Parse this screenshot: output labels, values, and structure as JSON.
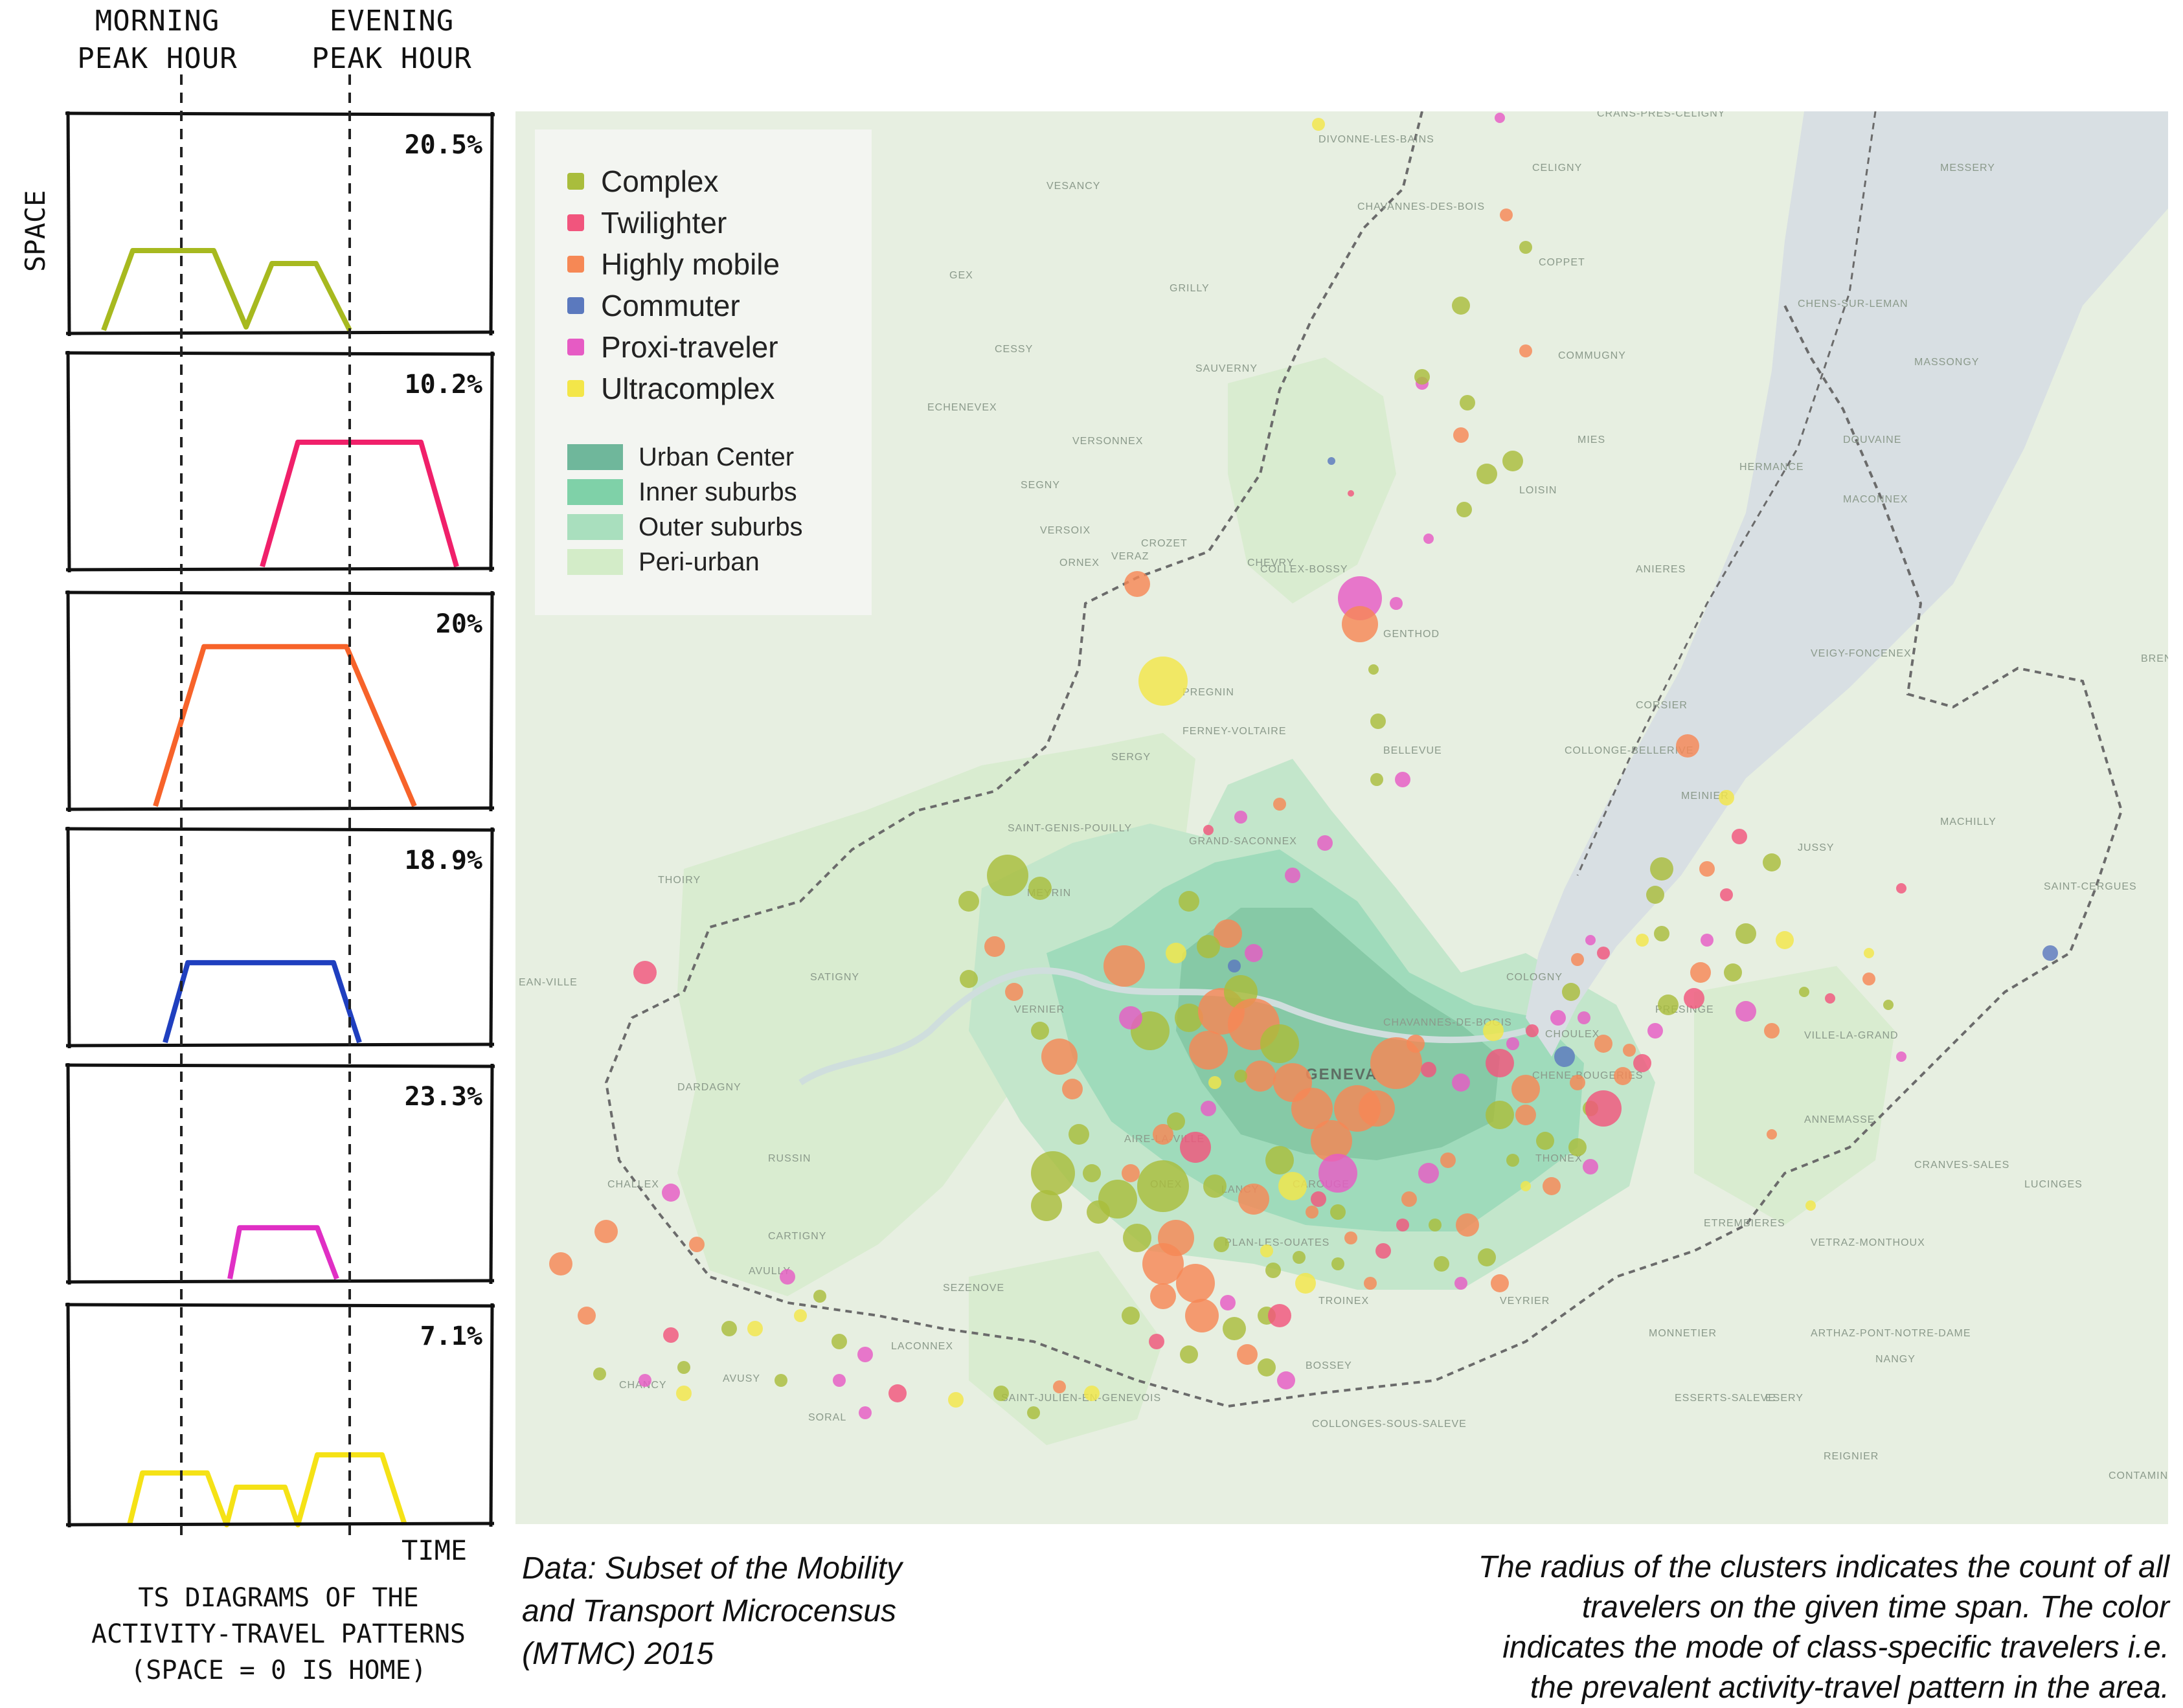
{
  "ts_panel": {
    "morning_peak": [
      "MORNING",
      "PEAK HOUR"
    ],
    "evening_peak": [
      "EVENING",
      "PEAK HOUR"
    ],
    "y_axis_label": "SPACE",
    "x_axis_label": "TIME",
    "caption": [
      "TS DIAGRAMS OF THE",
      "ACTIVITY-TRAVEL PATTERNS",
      "(SPACE = 0 IS HOME)"
    ],
    "diagrams": [
      {
        "name": "Complex",
        "share": "20.5%",
        "color": "#a7b91f"
      },
      {
        "name": "Twilighter",
        "share": "10.2%",
        "color": "#f0206a"
      },
      {
        "name": "Highly mobile",
        "share": "20%",
        "color": "#f7632a"
      },
      {
        "name": "Commuter",
        "share": "18.9%",
        "color": "#1f3fbf"
      },
      {
        "name": "Proxi-traveler",
        "share": "23.3%",
        "color": "#e02fc4"
      },
      {
        "name": "Ultracomplex",
        "share": "7.1%",
        "color": "#f5e216"
      }
    ]
  },
  "legend": {
    "classes": [
      {
        "label": "Complex",
        "color": "#a9bd3c"
      },
      {
        "label": "Twilighter",
        "color": "#f1557d"
      },
      {
        "label": "Highly mobile",
        "color": "#f68855"
      },
      {
        "label": "Commuter",
        "color": "#5b79be"
      },
      {
        "label": "Proxi-traveler",
        "color": "#e65bc4"
      },
      {
        "label": "Ultracomplex",
        "color": "#f3e649"
      }
    ],
    "zones": [
      {
        "label": "Urban Center",
        "color": "#6fb79b"
      },
      {
        "label": "Inner suburbs",
        "color": "#7fd1a8"
      },
      {
        "label": "Outer suburbs",
        "color": "#a9dfbe"
      },
      {
        "label": "Peri-urban",
        "color": "#d3ecc8"
      }
    ]
  },
  "map": {
    "city_label": "GENEVA",
    "places": [
      "DIVONNE-LES-BAINS",
      "CRANS-PRES-CELIGNY",
      "CELIGNY",
      "MESSERY",
      "VESANCY",
      "CHAVANNES-DES-BOIS",
      "GEX",
      "GRILLY",
      "COPPET",
      "CHENS-SUR-LEMAN",
      "CESSY",
      "SAUVERNY",
      "COMMUGNY",
      "MASSONGY",
      "ECHENEVEX",
      "VERSONNEX",
      "MIES",
      "HERMANCE",
      "DOUVAINE",
      "SEGNY",
      "LOISIN",
      "MACONNEX",
      "VERSOIX",
      "CROZET",
      "CHEVRY",
      "VERAZ",
      "ORNEX",
      "COLLEX-BOSSY",
      "ANIERES",
      "GENTHOD",
      "VEIGY-FONCENEX",
      "PREGNIN",
      "CORSIER",
      "FERNEY-VOLTAIRE",
      "BELLEVUE",
      "COLLONGE-BELLERIVE",
      "SERGY",
      "MEINIER",
      "MACHILLY",
      "SAINT-GENIS-POUILLY",
      "GRAND-SACONNEX",
      "JUSSY",
      "THOIRY",
      "MEYRIN",
      "SAINT-CERGUES",
      "SATIGNY",
      "VERNIER",
      "PRESINGE",
      "COLOGNY",
      "CHOULEX",
      "VILLE-LA-GRAND",
      "CHAVANNES-DE-BOGIS",
      "ANNEMASSE",
      "CHENE-BOUGERIES",
      "DARDAGNY",
      "AIRE-LA-VILLE",
      "RUSSIN",
      "ONEX",
      "LANCY",
      "CAROUGE",
      "THONEX",
      "CRANVES-SALES",
      "CHALLEX",
      "ETREMBIERES",
      "LUCINGES",
      "CARTIGNY",
      "PLAN-LES-OUATES",
      "VETRAZ-MONTHOUX",
      "AVULLY",
      "SEZENOVE",
      "TROINEX",
      "VEYRIER",
      "MONNETIER",
      "ARTHAZ-PONT-NOTRE-DAME",
      "LACONNEX",
      "AVUSY",
      "SAINT-JULIEN-EN-GENEVOIS",
      "BOSSEY",
      "ESSERTS-SALEVE",
      "ESERY",
      "NANGY",
      "CHANCY",
      "COLLONGES-SOUS-SALEVE",
      "SORAL",
      "REIGNIER",
      "CONTAMINE",
      "EAN-VILLE",
      "BRENS"
    ]
  },
  "notes": {
    "data_source": [
      "Data: Subset of the Mobility",
      "and Transport Microcensus",
      "(MTMC) 2015"
    ],
    "radius_explanation": [
      "The radius of the clusters indicates the count of all",
      "travelers on the given time span. The color",
      "indicates the mode of class-specific  travelers i.e.",
      "the prevalent activity-travel pattern in the area."
    ]
  }
}
